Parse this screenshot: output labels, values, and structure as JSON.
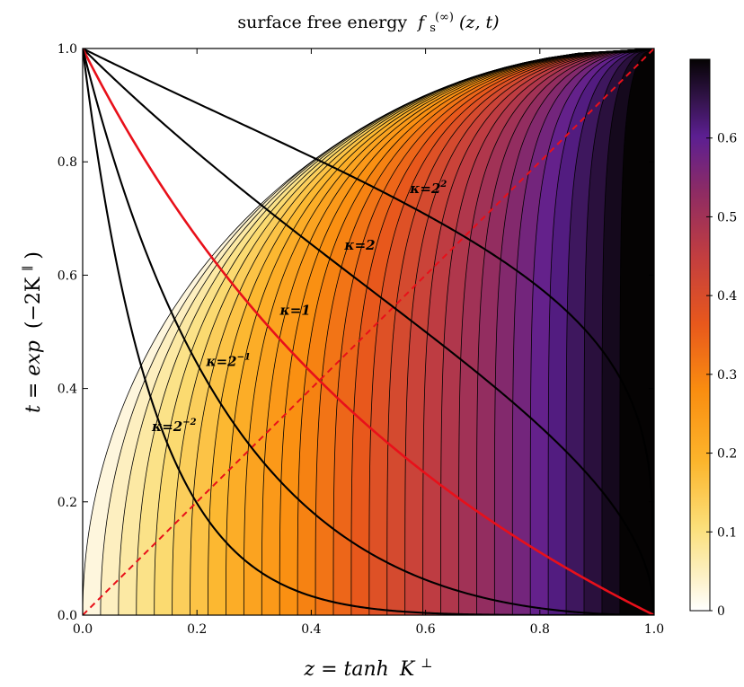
{
  "title": {
    "main": "surface free energy",
    "f": "f",
    "sub": "s",
    "sup": "(∞)",
    "args": "(z, t)"
  },
  "xaxis": {
    "label_lhs": "z = tanh",
    "label_var": "K",
    "label_sup": "⊥"
  },
  "yaxis": {
    "label_lhs": "t = exp",
    "label_inner": "(−2K",
    "label_sup": "∥",
    "label_close": ")"
  },
  "colors": {
    "curve": "#000000",
    "kappa1": "#e8101a",
    "diagonal": "#e8101a"
  },
  "colorbar": {
    "min": 0,
    "max": 0.7,
    "colormap": "inferno_r",
    "ticks": [
      {
        "value": 0,
        "label": "0"
      },
      {
        "value": 0.1,
        "label": "0.1"
      },
      {
        "value": 0.2,
        "label": "0.2"
      },
      {
        "value": 0.3,
        "label": "0.3"
      },
      {
        "value": 0.4,
        "label": "0.4"
      },
      {
        "value": 0.5,
        "label": "0.5"
      },
      {
        "value": 0.6,
        "label": "0.6"
      }
    ]
  },
  "chart_data": {
    "type": "heatmap",
    "title": "surface free energy f_s^(∞)(z, t)",
    "xlabel": "z = tanh K^⊥",
    "ylabel": "t = exp(−2K^∥)",
    "xlim": [
      0.0,
      1.0
    ],
    "ylim": [
      0.0,
      1.0
    ],
    "xticks": [
      {
        "value": 0.0,
        "label": "0.0"
      },
      {
        "value": 0.2,
        "label": "0.2"
      },
      {
        "value": 0.4,
        "label": "0.4"
      },
      {
        "value": 0.6,
        "label": "0.6"
      },
      {
        "value": 0.8,
        "label": "0.8"
      },
      {
        "value": 1.0,
        "label": "1.0"
      }
    ],
    "yticks": [
      {
        "value": 0.0,
        "label": "0.0"
      },
      {
        "value": 0.2,
        "label": "0.2"
      },
      {
        "value": 0.4,
        "label": "0.4"
      },
      {
        "value": 0.6,
        "label": "0.6"
      },
      {
        "value": 0.8,
        "label": "0.8"
      },
      {
        "value": 1.0,
        "label": "1.0"
      }
    ],
    "region_boundary": "t = 2z/(1 + z^2)",
    "filled_contour_levels": 30,
    "value_range": [
      0,
      0.7
    ],
    "diagonal_line": {
      "from": [
        0,
        0
      ],
      "to": [
        1,
        1
      ],
      "style": "dashed",
      "color": "#e8101a"
    },
    "curves": [
      {
        "kappa": 4,
        "label_base": "κ=2",
        "label_exp": "2",
        "formula": "t = ((1 - z)/(1 + z))^(1/κ)",
        "label_at": [
          0.605,
          0.745
        ]
      },
      {
        "kappa": 2,
        "label_base": "κ=2",
        "label_exp": "",
        "formula": "t = ((1 - z)/(1 + z))^(1/κ)",
        "label_at": [
          0.485,
          0.645
        ]
      },
      {
        "kappa": 1,
        "label_base": "κ=1",
        "label_exp": "",
        "formula": "t = ((1 - z)/(1 + z))^(1/κ)",
        "label_at": [
          0.372,
          0.53
        ]
      },
      {
        "kappa": 0.5,
        "label_base": "κ=2",
        "label_exp": "−1",
        "formula": "t = ((1 - z)/(1 + z))^(1/κ)",
        "label_at": [
          0.255,
          0.44
        ]
      },
      {
        "kappa": 0.25,
        "label_base": "κ=2",
        "label_exp": "−2",
        "formula": "t = ((1 - z)/(1 + z))^(1/κ)",
        "label_at": [
          0.16,
          0.325
        ]
      }
    ]
  }
}
